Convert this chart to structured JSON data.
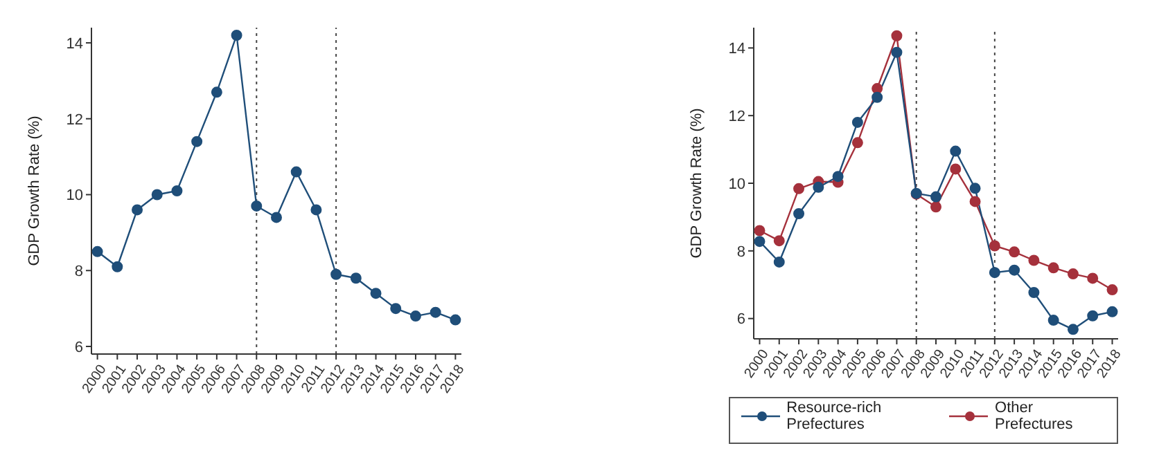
{
  "chart_data": [
    {
      "type": "line",
      "ylabel": "GDP Growth Rate (%)",
      "categories": [
        "2000",
        "2001",
        "2002",
        "2003",
        "2004",
        "2005",
        "2006",
        "2007",
        "2008",
        "2009",
        "2010",
        "2011",
        "2012",
        "2013",
        "2014",
        "2015",
        "2016",
        "2017",
        "2018"
      ],
      "series": [
        {
          "color": "#1f4e79",
          "values": [
            8.5,
            8.1,
            9.6,
            10.0,
            10.1,
            11.4,
            12.7,
            14.2,
            9.7,
            9.4,
            10.6,
            9.6,
            7.9,
            7.8,
            7.4,
            7.0,
            6.8,
            6.9,
            6.7
          ]
        }
      ],
      "ylim": [
        5.8,
        14.4
      ],
      "yticks": [
        6,
        8,
        10,
        12,
        14
      ],
      "grid": false,
      "legend": false,
      "marker": "circle",
      "line_style": "solid",
      "ref_lines": [
        {
          "axis": "x",
          "value": "2008",
          "color": "#444444",
          "line_style": "dotted"
        },
        {
          "axis": "x",
          "value": "2012",
          "color": "#444444",
          "line_style": "dotted"
        }
      ]
    },
    {
      "type": "line",
      "ylabel": "GDP Growth Rate (%)",
      "categories": [
        "2000",
        "2001",
        "2002",
        "2003",
        "2004",
        "2005",
        "2006",
        "2007",
        "2008",
        "2009",
        "2010",
        "2011",
        "2012",
        "2013",
        "2014",
        "2015",
        "2016",
        "2017",
        "2018"
      ],
      "series": [
        {
          "name": "Resource-rich Prefectures",
          "color": "#1f4e79",
          "values": [
            8.28,
            7.67,
            9.1,
            9.88,
            10.2,
            11.8,
            12.54,
            13.87,
            9.7,
            9.6,
            10.95,
            9.85,
            7.36,
            7.43,
            6.77,
            5.95,
            5.68,
            6.08,
            6.2
          ]
        },
        {
          "name": "Other Prefectures",
          "color": "#a5313c",
          "values": [
            8.6,
            8.3,
            9.84,
            10.05,
            10.03,
            11.2,
            12.8,
            14.36,
            9.68,
            9.3,
            10.42,
            9.46,
            8.15,
            7.97,
            7.72,
            7.5,
            7.32,
            7.19,
            6.85
          ]
        }
      ],
      "ylim": [
        5.4,
        14.6
      ],
      "yticks": [
        6,
        8,
        10,
        12,
        14
      ],
      "grid": false,
      "legend": "bottom",
      "marker": "circle",
      "line_style": "solid",
      "ref_lines": [
        {
          "axis": "x",
          "value": "2008",
          "color": "#444444",
          "line_style": "dotted"
        },
        {
          "axis": "x",
          "value": "2012",
          "color": "#444444",
          "line_style": "dotted"
        }
      ]
    }
  ]
}
